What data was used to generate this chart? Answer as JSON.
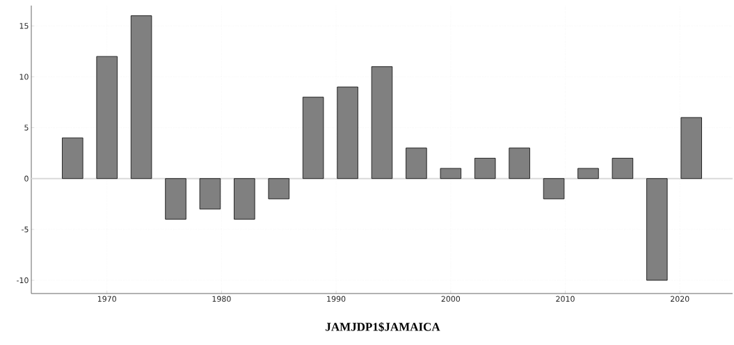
{
  "chart_data": {
    "type": "bar",
    "title": "JAMJDP1$JAMAICA",
    "x": [
      1967,
      1970,
      1973,
      1976,
      1979,
      1982,
      1985,
      1988,
      1991,
      1994,
      1997,
      2000,
      2003,
      2006,
      2009,
      2012,
      2015,
      2018,
      2021
    ],
    "values": [
      4,
      12,
      16,
      -4,
      -3,
      -4,
      -2,
      8,
      9,
      11,
      3,
      1,
      2,
      3,
      -2,
      1,
      2,
      -10,
      6
    ],
    "color": "#808080",
    "xlim": [
      1963.4,
      2024.6
    ],
    "ylim": [
      -11.3,
      17
    ],
    "xticks": [
      1970,
      1980,
      1990,
      2000,
      2010,
      2020
    ],
    "yticks": [
      -10,
      -5,
      0,
      5,
      10,
      15
    ],
    "grid": true,
    "ref_lines": [
      {
        "axis": "y",
        "value": 0,
        "color": "#d9d9d9"
      }
    ]
  }
}
